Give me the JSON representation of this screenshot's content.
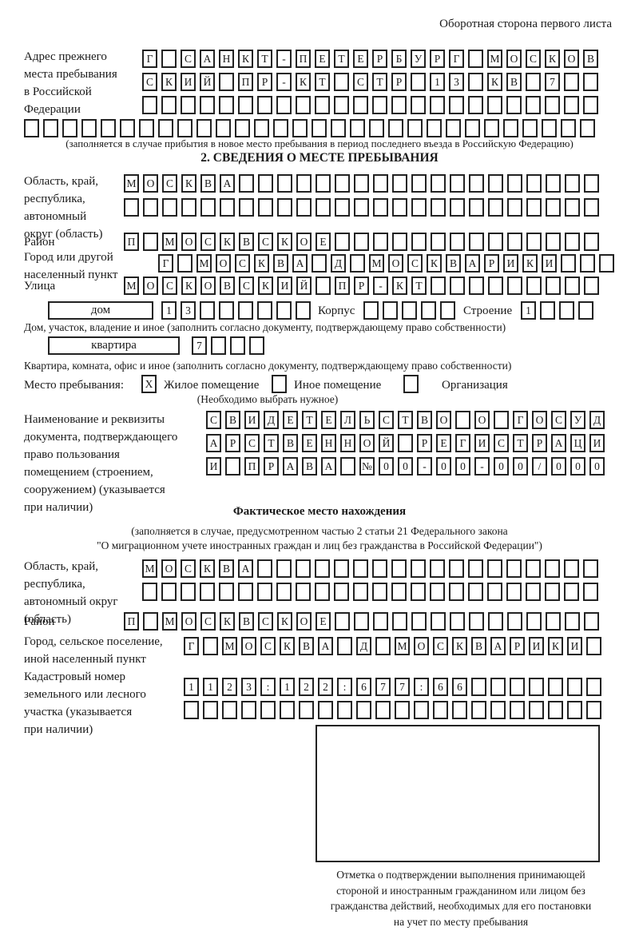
{
  "page": {
    "header": "Оборотная сторона первого листа"
  },
  "prev_address": {
    "label": [
      "Адрес прежнего",
      "места пребывания",
      "в Российской",
      "Федерации"
    ],
    "rows": [
      {
        "cells": 24,
        "chars": "Г САНКТ-ПЕТЕРБУРГ МОСКОВ"
      },
      {
        "cells": 24,
        "chars": "СКИЙ ПР-КТ СТР 13 КВ 7"
      },
      {
        "cells": 24,
        "chars": ""
      },
      {
        "cells": 30,
        "chars": ""
      }
    ],
    "note": "(заполняется в случае прибытия в новое место пребывания в период последнего въезда в Российскую Федерацию)"
  },
  "section2": {
    "title": "2. СВЕДЕНИЯ О МЕСТЕ ПРЕБЫВАНИЯ",
    "region": {
      "label": [
        "Область, край,",
        "республика,",
        "автономный",
        "округ (область)"
      ],
      "rows": [
        {
          "cells": 25,
          "chars": "МОСКВА"
        },
        {
          "cells": 25,
          "chars": ""
        }
      ]
    },
    "district": {
      "label": "Район",
      "row": {
        "cells": 25,
        "chars": "П МОСКВСКОЕ"
      }
    },
    "city": {
      "label": [
        "Город или другой",
        "населенный пункт"
      ],
      "row": {
        "cells": 24,
        "chars": "Г МОСКВА Д МОСКВАРИКИ"
      }
    },
    "street": {
      "label": "Улица",
      "row": {
        "cells": 25,
        "chars": "МОСКОВСКИЙ ПР-КТ"
      }
    },
    "house": {
      "type_label": "дом",
      "row": {
        "cells": 8,
        "chars": "13"
      },
      "korpus_label": "Корпус",
      "korpus_row": {
        "cells": 5,
        "chars": ""
      },
      "stroenie_label": "Строение",
      "stroenie_row": {
        "cells": 4,
        "chars": "1"
      }
    },
    "house_note": "Дом, участок, владение и иное (заполнить согласно документу, подтверждающему право собственности)",
    "apartment": {
      "type_label": "квартира",
      "row": {
        "cells": 4,
        "chars": "7"
      }
    },
    "apartment_note": "Квартира, комната, офис и иное (заполнить согласно документу, подтверждающему право собственности)",
    "stay_type": {
      "label": "Место пребывания:",
      "options": [
        {
          "label": "Жилое помещение",
          "checked": "X"
        },
        {
          "label": "Иное помещение",
          "checked": ""
        },
        {
          "label": "Организация",
          "checked": ""
        }
      ],
      "note": "(Необходимо выбрать нужное)"
    },
    "document": {
      "label": [
        "Наименование и реквизиты",
        "документа, подтверждающего",
        "право пользования",
        "помещением (строением,",
        "сооружением) (указывается",
        "при наличии)"
      ],
      "rows": [
        {
          "cells": 21,
          "chars": "СВИДЕТЕЛЬСТВО О ГОСУД"
        },
        {
          "cells": 21,
          "chars": "АРСТВЕННОЙ РЕГИСТРАЦИ"
        },
        {
          "cells": 21,
          "chars": "И ПРАВА №00-00-00/000"
        }
      ]
    }
  },
  "actual_location": {
    "title": "Фактическое место нахождения",
    "note": [
      "(заполняется в случае, предусмотренном частью 2 статьи 21 Федерального закона",
      "\"О миграционном учете иностранных граждан и лиц без гражданства в Российской Федерации\")"
    ],
    "region": {
      "label": [
        "Область, край,",
        "республика,",
        "автономный округ",
        "(область)"
      ],
      "rows": [
        {
          "cells": 24,
          "chars": "МОСКВА"
        },
        {
          "cells": 24,
          "chars": ""
        }
      ]
    },
    "district": {
      "label": "Район",
      "row": {
        "cells": 25,
        "chars": "П МОСКВСКОЕ"
      }
    },
    "city": {
      "label": [
        "Город, сельское поселение,",
        "иной населенный пункт"
      ],
      "row": {
        "cells": 22,
        "chars": "Г МОСКВА Д МОСКВАРИКИ"
      }
    },
    "cadastral": {
      "label": [
        "Кадастровый номер",
        "земельного или лесного",
        "участка (указывается",
        "при наличии)"
      ],
      "rows": [
        {
          "cells": 22,
          "chars": "1123:122:677:66"
        },
        {
          "cells": 22,
          "chars": ""
        }
      ]
    },
    "stamp_note": [
      "Отметка о подтверждении выполнения принимающей",
      "стороной и иностранным гражданином или лицом без",
      "гражданства действий, необходимых для его постановки",
      "на учет по месту пребывания"
    ]
  }
}
